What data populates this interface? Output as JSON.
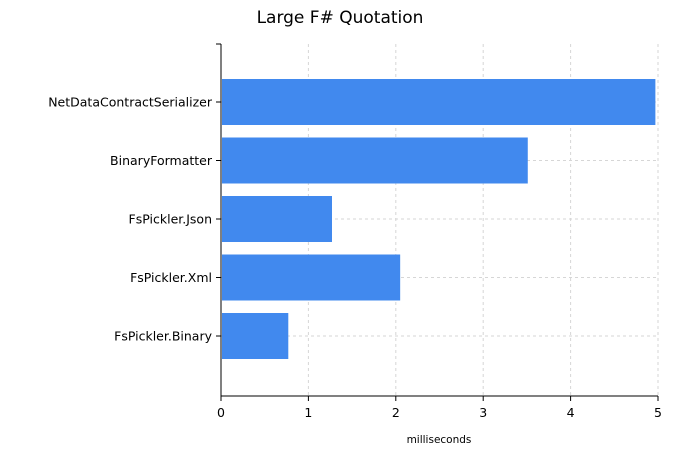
{
  "chart_data": {
    "type": "bar",
    "orientation": "horizontal",
    "title": "Large F# Quotation",
    "xlabel": "milliseconds",
    "ylabel": "",
    "categories": [
      "NetDataContractSerializer",
      "BinaryFormatter",
      "FsPickler.Json",
      "FsPickler.Xml",
      "FsPickler.Binary"
    ],
    "values": [
      4.97,
      3.51,
      1.27,
      2.05,
      0.77
    ],
    "xlim": [
      0,
      5
    ],
    "xticks": [
      "0",
      "1",
      "2",
      "3",
      "4",
      "5"
    ],
    "grid": true,
    "legend": "none",
    "bar_color": "#4189ee"
  }
}
